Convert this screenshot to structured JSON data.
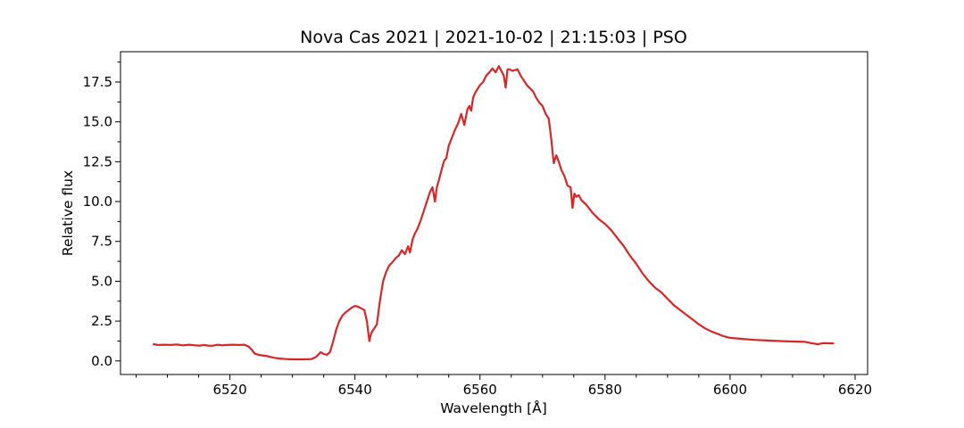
{
  "chart_data": {
    "type": "line",
    "title": "Nova Cas 2021 | 2021-10-02 | 21:15:03 | PSO",
    "xlabel": "Wavelength [Å]",
    "ylabel": "Relative flux",
    "xlim": [
      6502.5,
      6622
    ],
    "ylim": [
      -0.85,
      19.4
    ],
    "xticks": [
      6520,
      6540,
      6560,
      6580,
      6600,
      6620
    ],
    "yticks": [
      0.0,
      2.5,
      5.0,
      7.5,
      10.0,
      12.5,
      15.0,
      17.5
    ],
    "xtick_labels": [
      "6520",
      "6540",
      "6560",
      "6580",
      "6600",
      "6620"
    ],
    "ytick_labels": [
      "0.0",
      "2.5",
      "5.0",
      "7.5",
      "10.0",
      "12.5",
      "15.0",
      "17.5"
    ],
    "grid": false,
    "line_color": "#d62728",
    "series": [
      {
        "x": [
          6507.8,
          6508.5,
          6509.5,
          6510.5,
          6511.5,
          6512.5,
          6513.5,
          6514.5,
          6515.2,
          6515.8,
          6516.5,
          6517.2,
          6518.0,
          6518.8,
          6519.5,
          6520.5,
          6521.5,
          6522.3,
          6523.0,
          6523.5,
          6524.0,
          6525.0,
          6526.0,
          6527.0,
          6528.0,
          6529.0,
          6530.0,
          6531.0,
          6532.0,
          6533.0,
          6533.8,
          6534.5,
          6535.0,
          6535.5,
          6536.0,
          6536.5,
          6537.0,
          6537.5,
          6538.0,
          6538.5,
          6539.0,
          6539.5,
          6540.0,
          6540.5,
          6541.0,
          6541.5,
          6541.9,
          6542.3,
          6542.6,
          6543.0,
          6543.5,
          6544.0,
          6544.5,
          6545.0,
          6545.5,
          6546.0,
          6546.5,
          6547.0,
          6547.5,
          6548.0,
          6548.5,
          6548.8,
          6549.2,
          6549.6,
          6550.0,
          6550.5,
          6551.0,
          6551.5,
          6552.0,
          6552.4,
          6552.8,
          6553.1,
          6553.4,
          6554.0,
          6554.3,
          6554.6,
          6555.0,
          6555.5,
          6556.0,
          6556.5,
          6557.0,
          6557.5,
          6558.0,
          6558.3,
          6558.6,
          6558.9,
          6559.2,
          6559.5,
          6560.0,
          6560.5,
          6561.0,
          6561.5,
          6562.0,
          6562.5,
          6563.0,
          6563.4,
          6563.8,
          6564.1,
          6564.4,
          6564.7,
          6565.2,
          6566.0,
          6566.5,
          6567.0,
          6567.5,
          6568.0,
          6568.5,
          6569.0,
          6569.5,
          6570.0,
          6570.5,
          6571.0,
          6571.4,
          6571.8,
          6572.2,
          6572.6,
          6573.0,
          6573.5,
          6574.0,
          6574.5,
          6574.8,
          6575.1,
          6575.4,
          6575.8,
          6576.2,
          6577.0,
          6578.0,
          6579.0,
          6580.0,
          6581.0,
          6582.0,
          6583.0,
          6584.0,
          6585.0,
          6586.0,
          6587.0,
          6588.0,
          6589.0,
          6590.0,
          6591.0,
          6592.0,
          6593.0,
          6594.0,
          6595.0,
          6596.0,
          6597.0,
          6598.0,
          6599.0,
          6600.0,
          6602.0,
          6604.0,
          6606.0,
          6608.0,
          6610.0,
          6612.0,
          6613.0,
          6614.0,
          6615.0,
          6616.5
        ],
        "y": [
          1.05,
          1.0,
          1.02,
          1.0,
          1.03,
          0.98,
          1.02,
          0.98,
          0.96,
          1.0,
          0.96,
          0.95,
          1.02,
          0.98,
          1.0,
          1.02,
          1.0,
          1.02,
          0.9,
          0.7,
          0.45,
          0.35,
          0.3,
          0.2,
          0.15,
          0.12,
          0.1,
          0.1,
          0.1,
          0.12,
          0.25,
          0.55,
          0.45,
          0.38,
          0.55,
          1.2,
          1.95,
          2.5,
          2.85,
          3.05,
          3.2,
          3.35,
          3.45,
          3.4,
          3.3,
          3.2,
          2.5,
          1.25,
          1.75,
          2.0,
          2.3,
          3.8,
          5.0,
          5.6,
          6.0,
          6.2,
          6.45,
          6.6,
          6.95,
          6.7,
          7.2,
          6.8,
          7.6,
          8.0,
          8.3,
          8.8,
          9.4,
          10.0,
          10.6,
          10.9,
          10.0,
          10.9,
          11.3,
          12.2,
          12.6,
          12.7,
          13.5,
          14.0,
          14.5,
          14.9,
          15.5,
          14.8,
          15.8,
          16.0,
          15.7,
          16.5,
          16.8,
          17.0,
          17.3,
          17.5,
          17.9,
          18.1,
          18.35,
          18.1,
          18.5,
          18.2,
          17.9,
          17.15,
          18.3,
          18.3,
          18.2,
          18.3,
          17.9,
          17.6,
          17.3,
          17.1,
          16.9,
          16.5,
          16.2,
          16.0,
          15.5,
          15.2,
          13.9,
          12.4,
          12.9,
          12.5,
          12.0,
          11.6,
          11.0,
          10.9,
          9.6,
          10.5,
          10.3,
          10.4,
          10.1,
          9.8,
          9.3,
          8.9,
          8.6,
          8.2,
          7.7,
          7.2,
          6.6,
          6.1,
          5.5,
          5.0,
          4.6,
          4.3,
          3.9,
          3.5,
          3.2,
          2.9,
          2.6,
          2.3,
          2.05,
          1.85,
          1.7,
          1.55,
          1.45,
          1.38,
          1.32,
          1.28,
          1.25,
          1.22,
          1.2,
          1.12,
          1.05,
          1.12,
          1.1
        ]
      }
    ]
  }
}
